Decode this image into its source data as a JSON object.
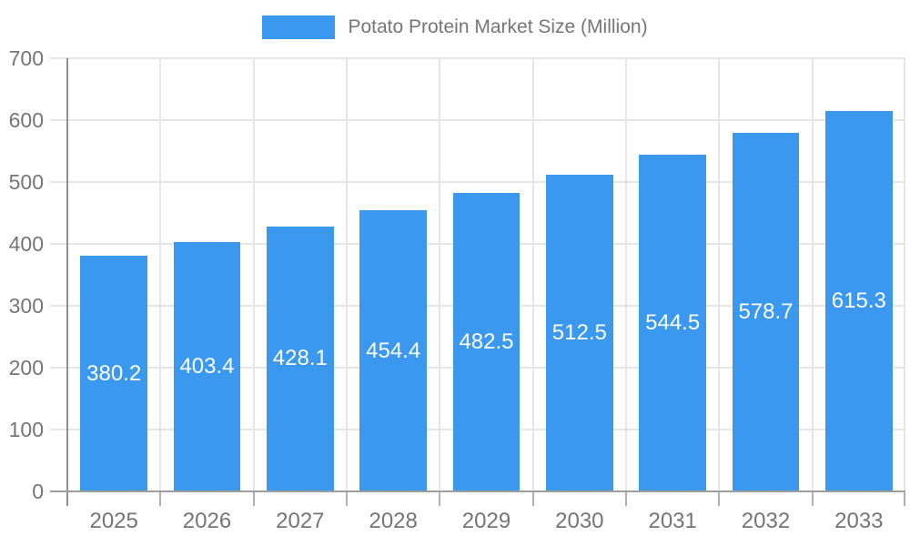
{
  "legend": {
    "label": "Potato Protein Market Size (Million)"
  },
  "colors": {
    "bar": "#3b98ef",
    "axis_text": "#757575",
    "gridline": "#e6e6e6",
    "axis_line": "#8f8f8f",
    "baseline": "#9e9e9e",
    "value_label": "#ffffff"
  },
  "chart_data": {
    "type": "bar",
    "title": "Potato Protein Market Size (Million)",
    "categories": [
      "2025",
      "2026",
      "2027",
      "2028",
      "2029",
      "2030",
      "2031",
      "2032",
      "2033"
    ],
    "values": [
      380.2,
      403.4,
      428.1,
      454.4,
      482.5,
      512.5,
      544.5,
      578.7,
      615.3
    ],
    "xlabel": "",
    "ylabel": "",
    "ylim": [
      0,
      700
    ],
    "yticks": [
      0,
      100,
      200,
      300,
      400,
      500,
      600,
      700
    ],
    "grid": true,
    "legend_position": "top",
    "bar_color": "#3b98ef",
    "value_labels_inside_bars": true
  }
}
